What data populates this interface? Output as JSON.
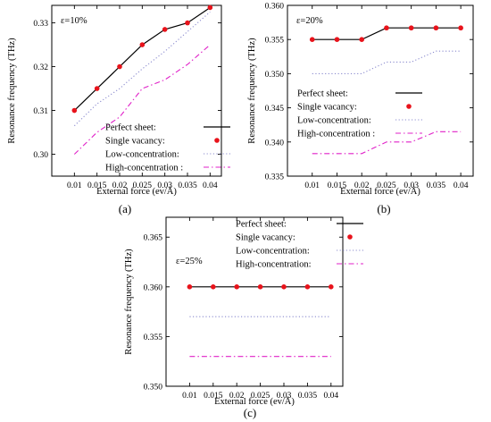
{
  "figure": {
    "legend_labels": [
      "Perfect sheet:",
      "Single vacancy:",
      "Low-concentration:",
      "High-concentration :"
    ],
    "legend_labels_c": [
      "Perfect sheet:",
      "Single vacancy:",
      "Low-concentration:",
      "High-concentration:"
    ]
  },
  "chart_data": [
    {
      "panel_label": "(a)",
      "annotation": "ε=10%",
      "type": "line",
      "xlabel": "External force (ev/Å)",
      "ylabel": "Resonance frequency (THz)",
      "xlim": [
        0.005,
        0.0425
      ],
      "ylim": [
        0.295,
        0.334
      ],
      "xticks": [
        "0.01",
        "0.015",
        "0.02",
        "0.025",
        "0.03",
        "0.035",
        "0.04"
      ],
      "yticks": [
        "0.30",
        "0.31",
        "0.32",
        "0.33"
      ],
      "legend_position": "bottom-right",
      "x": [
        0.01,
        0.015,
        0.02,
        0.025,
        0.03,
        0.035,
        0.04
      ],
      "series": [
        {
          "name": "Perfect sheet:",
          "style": "solid",
          "color": "#000000",
          "values": [
            0.31,
            0.315,
            0.32,
            0.325,
            0.3285,
            0.33,
            0.3335
          ]
        },
        {
          "name": "Single vacancy:",
          "style": "markers",
          "color": "#e8131b",
          "values": [
            0.31,
            0.315,
            0.32,
            0.325,
            0.3285,
            0.33,
            0.3335
          ]
        },
        {
          "name": "Low-concentration:",
          "style": "dotted",
          "color": "#8c8ccf",
          "values": [
            0.3065,
            0.3115,
            0.315,
            0.3195,
            0.3235,
            0.328,
            0.3325
          ]
        },
        {
          "name": "High-concentration :",
          "style": "dashdot",
          "color": "#e020c8",
          "values": [
            0.3,
            0.305,
            0.3085,
            0.315,
            0.317,
            0.3205,
            0.325
          ]
        }
      ]
    },
    {
      "panel_label": "(b)",
      "annotation": "ε=20%",
      "type": "line",
      "xlabel": "External force (ev/Å)",
      "ylabel": "Resonance frequency (THz)",
      "xlim": [
        0.005,
        0.0425
      ],
      "ylim": [
        0.335,
        0.36
      ],
      "xticks": [
        "0.01",
        "0.015",
        "0.02",
        "0.025",
        "0.03",
        "0.035",
        "0.04"
      ],
      "yticks": [
        "0.335",
        "0.340",
        "0.345",
        "0.350",
        "0.355",
        "0.360"
      ],
      "legend_position": "middle-right",
      "x": [
        0.01,
        0.015,
        0.02,
        0.025,
        0.03,
        0.035,
        0.04
      ],
      "series": [
        {
          "name": "Perfect sheet:",
          "style": "solid",
          "color": "#000000",
          "values": [
            0.355,
            0.355,
            0.355,
            0.3567,
            0.3567,
            0.3567,
            0.3567
          ]
        },
        {
          "name": "Single vacancy:",
          "style": "markers",
          "color": "#e8131b",
          "values": [
            0.355,
            0.355,
            0.355,
            0.3567,
            0.3567,
            0.3567,
            0.3567
          ]
        },
        {
          "name": "Low-concentration:",
          "style": "dotted",
          "color": "#8c8ccf",
          "values": [
            0.35,
            0.35,
            0.35,
            0.3517,
            0.3517,
            0.3533,
            0.3533
          ]
        },
        {
          "name": "High-concentration :",
          "style": "dashdot",
          "color": "#e020c8",
          "values": [
            0.3383,
            0.3383,
            0.3383,
            0.34,
            0.34,
            0.3415,
            0.3415
          ]
        }
      ]
    },
    {
      "panel_label": "(c)",
      "annotation": "ε=25%",
      "type": "line",
      "xlabel": "External force (ev/Å)",
      "ylabel": "Resonance frequency (THz)",
      "xlim": [
        0.005,
        0.0425
      ],
      "ylim": [
        0.35,
        0.367
      ],
      "xticks": [
        "0.01",
        "0.015",
        "0.02",
        "0.025",
        "0.03",
        "0.035",
        "0.04"
      ],
      "yticks": [
        "0.350",
        "0.355",
        "0.360",
        "0.365"
      ],
      "legend_position": "top-right",
      "x": [
        0.01,
        0.015,
        0.02,
        0.025,
        0.03,
        0.035,
        0.04
      ],
      "series": [
        {
          "name": "Perfect sheet:",
          "style": "solid",
          "color": "#000000",
          "values": [
            0.36,
            0.36,
            0.36,
            0.36,
            0.36,
            0.36,
            0.36
          ]
        },
        {
          "name": "Single vacancy:",
          "style": "markers",
          "color": "#e8131b",
          "values": [
            0.36,
            0.36,
            0.36,
            0.36,
            0.36,
            0.36,
            0.36
          ]
        },
        {
          "name": "Low-concentration:",
          "style": "dotted",
          "color": "#8c8ccf",
          "values": [
            0.357,
            0.357,
            0.357,
            0.357,
            0.357,
            0.357,
            0.357
          ]
        },
        {
          "name": "High-concentration:",
          "style": "dashdot",
          "color": "#e020c8",
          "values": [
            0.353,
            0.353,
            0.353,
            0.353,
            0.353,
            0.353,
            0.353
          ]
        }
      ]
    }
  ]
}
